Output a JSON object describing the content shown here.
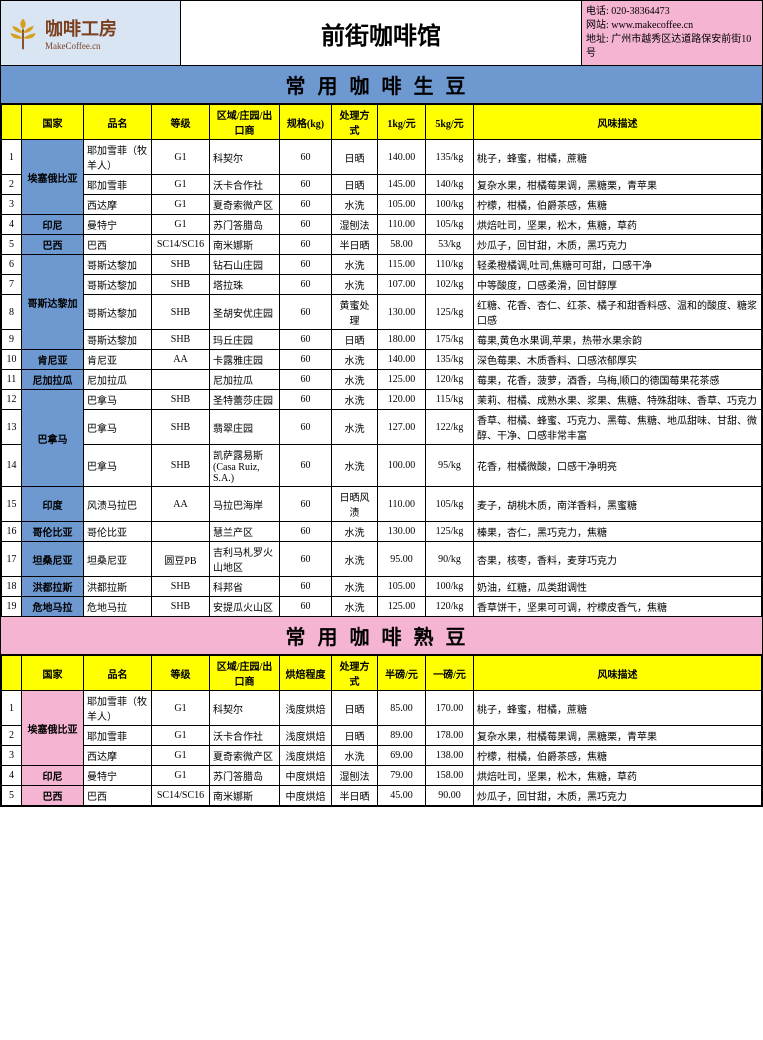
{
  "header": {
    "logo_title": "咖啡工房",
    "logo_sub": "MakeCoffee.cn",
    "main_title": "前街咖啡馆",
    "contact_phone_label": "电话:",
    "contact_phone": "020-38364473",
    "contact_web_label": "网站:",
    "contact_web": "www.makecoffee.cn",
    "contact_addr_label": "地址:",
    "contact_addr": "广州市越秀区达道路保安前街10号"
  },
  "section1": {
    "title": "常用咖啡生豆",
    "headers": [
      "国家",
      "品名",
      "等级",
      "区域/庄园/出口商",
      "规格(kg)",
      "处理方式",
      "1kg/元",
      "5kg/元",
      "风味描述"
    ],
    "rows": [
      {
        "idx": "1",
        "country": "埃塞俄比亚",
        "country_span": 3,
        "name": "耶加雪菲（牧羊人）",
        "grade": "G1",
        "region": "科契尔",
        "spec": "60",
        "process": "日晒",
        "p1": "140.00",
        "p5": "135/kg",
        "flavor": "桃子，蜂蜜，柑橘，蔗糖"
      },
      {
        "idx": "2",
        "name": "耶加雪菲",
        "grade": "G1",
        "region": "沃卡合作社",
        "spec": "60",
        "process": "日晒",
        "p1": "145.00",
        "p5": "140/kg",
        "flavor": "复杂水果，柑橘莓果调，黑糖栗，青苹果"
      },
      {
        "idx": "3",
        "name": "西达摩",
        "grade": "G1",
        "region": "夏奇索微产区",
        "spec": "60",
        "process": "水洗",
        "p1": "105.00",
        "p5": "100/kg",
        "flavor": "柠檬，柑橘，伯爵茶感，焦糖"
      },
      {
        "idx": "4",
        "country": "印尼",
        "country_span": 1,
        "name": "曼特宁",
        "grade": "G1",
        "region": "苏门答腊岛",
        "spec": "60",
        "process": "湿刨法",
        "p1": "110.00",
        "p5": "105/kg",
        "flavor": "烘焙吐司，坚果，松木，焦糖，草药"
      },
      {
        "idx": "5",
        "country": "巴西",
        "country_span": 1,
        "name": "巴西",
        "grade": "SC14/SC16",
        "region": "南米娜斯",
        "spec": "60",
        "process": "半日晒",
        "p1": "58.00",
        "p5": "53/kg",
        "flavor": "炒瓜子，回甘甜，木质，黑巧克力"
      },
      {
        "idx": "6",
        "country": "哥斯达黎加",
        "country_span": 4,
        "name": "哥斯达黎加",
        "grade": "SHB",
        "region": "钻石山庄园",
        "spec": "60",
        "process": "水洗",
        "p1": "115.00",
        "p5": "110/kg",
        "flavor": "轻柔橙橘调,吐司,焦糖可可甜，口感干净"
      },
      {
        "idx": "7",
        "name": "哥斯达黎加",
        "grade": "SHB",
        "region": "塔拉珠",
        "spec": "60",
        "process": "水洗",
        "p1": "107.00",
        "p5": "102/kg",
        "flavor": "中等酸度，口感柔滑，回甘醇厚"
      },
      {
        "idx": "8",
        "name": "哥斯达黎加",
        "grade": "SHB",
        "region": "圣胡安优庄园",
        "spec": "60",
        "process": "黄蜜处理",
        "p1": "130.00",
        "p5": "125/kg",
        "flavor": "红糖、花香、杏仁、红茶、橘子和甜香料感、温和的酸度、糖浆口感"
      },
      {
        "idx": "9",
        "name": "哥斯达黎加",
        "grade": "SHB",
        "region": "玛丘庄园",
        "spec": "60",
        "process": "日晒",
        "p1": "180.00",
        "p5": "175/kg",
        "flavor": "莓果,黄色水果调,苹果，热带水果余韵"
      },
      {
        "idx": "10",
        "country": "肯尼亚",
        "country_span": 1,
        "name": "肯尼亚",
        "grade": "AA",
        "region": "卡露雅庄园",
        "spec": "60",
        "process": "水洗",
        "p1": "140.00",
        "p5": "135/kg",
        "flavor": "深色莓果、木质香料、口感浓郁厚实"
      },
      {
        "idx": "11",
        "country": "尼加拉瓜",
        "country_span": 1,
        "name": "尼加拉瓜",
        "grade": "",
        "region": "尼加拉瓜",
        "spec": "60",
        "process": "水洗",
        "p1": "125.00",
        "p5": "120/kg",
        "flavor": "莓果，花香，菠萝，酒香，乌梅,顺口的德国莓果花茶感"
      },
      {
        "idx": "12",
        "country": "巴拿马",
        "country_span": 3,
        "name": "巴拿马",
        "grade": "SHB",
        "region": "圣特蕾莎庄园",
        "spec": "60",
        "process": "水洗",
        "p1": "120.00",
        "p5": "115/kg",
        "flavor": "茉莉、柑橘、成熟水果、浆果、焦糖、特殊甜味、香草、巧克力"
      },
      {
        "idx": "13",
        "name": "巴拿马",
        "grade": "SHB",
        "region": "翡翠庄园",
        "spec": "60",
        "process": "水洗",
        "p1": "127.00",
        "p5": "122/kg",
        "flavor": "香草、柑橘、蜂蜜、巧克力、黑莓、焦糖、地瓜甜味、甘甜、微醇、干净、口感非常丰富"
      },
      {
        "idx": "14",
        "name": "巴拿马",
        "grade": "SHB",
        "region": "凯萨露易斯(Casa Ruiz, S.A.)",
        "spec": "60",
        "process": "水洗",
        "p1": "100.00",
        "p5": "95/kg",
        "flavor": "花香，柑橘微酸，口感干净明亮"
      },
      {
        "idx": "15",
        "country": "印度",
        "country_span": 1,
        "name": "风渍马拉巴",
        "grade": "AA",
        "region": "马拉巴海岸",
        "spec": "60",
        "process": "日晒风渍",
        "p1": "110.00",
        "p5": "105/kg",
        "flavor": "麦子，胡桃木质，南洋香料，黑蜜糖"
      },
      {
        "idx": "16",
        "country": "哥伦比亚",
        "country_span": 1,
        "name": "哥伦比亚",
        "grade": "",
        "region": "慧兰产区",
        "spec": "60",
        "process": "水洗",
        "p1": "130.00",
        "p5": "125/kg",
        "flavor": "榛果，杏仁，黑巧克力，焦糖"
      },
      {
        "idx": "17",
        "country": "坦桑尼亚",
        "country_span": 1,
        "name": "坦桑尼亚",
        "grade": "圆豆PB",
        "region": "吉利马札罗火山地区",
        "spec": "60",
        "process": "水洗",
        "p1": "95.00",
        "p5": "90/kg",
        "flavor": "杏果，核枣，香料，麦芽巧克力"
      },
      {
        "idx": "18",
        "country": "洪都拉斯",
        "country_span": 1,
        "name": "洪都拉斯",
        "grade": "SHB",
        "region": "科邦省",
        "spec": "60",
        "process": "水洗",
        "p1": "105.00",
        "p5": "100/kg",
        "flavor": "奶油，红糖，瓜类甜调性"
      },
      {
        "idx": "19",
        "country": "危地马拉",
        "country_span": 1,
        "name": "危地马拉",
        "grade": "SHB",
        "region": "安提瓜火山区",
        "spec": "60",
        "process": "水洗",
        "p1": "125.00",
        "p5": "120/kg",
        "flavor": "香草饼干，坚果可可调，柠檬皮香气，焦糖"
      }
    ]
  },
  "section2": {
    "title": "常用咖啡熟豆",
    "headers": [
      "国家",
      "品名",
      "等级",
      "区域/庄园/出口商",
      "烘焙程度",
      "处理方式",
      "半磅/元",
      "一磅/元",
      "风味描述"
    ],
    "rows": [
      {
        "idx": "1",
        "country": "埃塞俄比亚",
        "country_span": 3,
        "name": "耶加雪菲（牧羊人）",
        "grade": "G1",
        "region": "科契尔",
        "roast": "浅度烘焙",
        "process": "日晒",
        "p1": "85.00",
        "p5": "170.00",
        "flavor": "桃子，蜂蜜，柑橘，蔗糖"
      },
      {
        "idx": "2",
        "name": "耶加雪菲",
        "grade": "G1",
        "region": "沃卡合作社",
        "roast": "浅度烘焙",
        "process": "日晒",
        "p1": "89.00",
        "p5": "178.00",
        "flavor": "复杂水果，柑橘莓果调，黑糖栗，青苹果"
      },
      {
        "idx": "3",
        "name": "西达摩",
        "grade": "G1",
        "region": "夏奇索微产区",
        "roast": "浅度烘焙",
        "process": "水洗",
        "p1": "69.00",
        "p5": "138.00",
        "flavor": "柠檬，柑橘，伯爵茶感，焦糖"
      },
      {
        "idx": "4",
        "country": "印尼",
        "country_span": 1,
        "name": "曼特宁",
        "grade": "G1",
        "region": "苏门答腊岛",
        "roast": "中度烘焙",
        "process": "湿刨法",
        "p1": "79.00",
        "p5": "158.00",
        "flavor": "烘焙吐司，坚果，松木，焦糖，草药"
      },
      {
        "idx": "5",
        "country": "巴西",
        "country_span": 1,
        "name": "巴西",
        "grade": "SC14/SC16",
        "region": "南米娜斯",
        "roast": "中度烘焙",
        "process": "半日晒",
        "p1": "45.00",
        "p5": "90.00",
        "flavor": "炒瓜子，回甘甜，木质，黑巧克力"
      }
    ]
  },
  "colors": {
    "blue": "#6e98d0",
    "pink": "#f5b4d2",
    "yellow": "#ffff00",
    "logo_bg": "#dae5f3",
    "logo_text": "#7b3f1e"
  }
}
